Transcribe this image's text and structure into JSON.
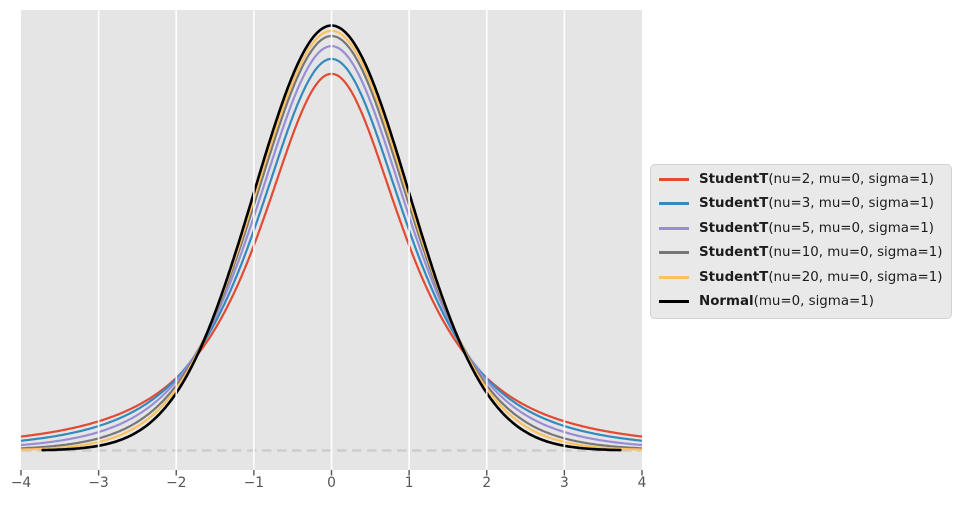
{
  "figure": {
    "background": "#ffffff"
  },
  "chart_data": {
    "type": "line",
    "title": "",
    "xlabel": "",
    "ylabel": "",
    "plot_background": "#e5e5e5",
    "grid": {
      "color": "#ffffff",
      "vertical_lines_at": [
        -3,
        -2,
        -1,
        0,
        1,
        2,
        3
      ],
      "horizontal": false,
      "above_data": true
    },
    "xlim": [
      -4,
      4
    ],
    "ylim": [
      -0.0183,
      0.4135
    ],
    "x_ticks": {
      "values": [
        -4,
        -3,
        -2,
        -1,
        0,
        1,
        2,
        3,
        4
      ],
      "labels": [
        "−4",
        "−3",
        "−2",
        "−1",
        "0",
        "1",
        "2",
        "3",
        "4"
      ],
      "color": "#555555"
    },
    "y_ticks": {
      "values": [],
      "labels": []
    },
    "baseline": {
      "y": 0,
      "style": "dashed",
      "color": "#cdcdcd",
      "x_start": -4,
      "x_end": 4
    },
    "samples_x": [
      -4,
      -3,
      -2,
      -1,
      0,
      1,
      2,
      3,
      4
    ],
    "series": [
      {
        "name": "StudentT",
        "params": "(nu=2, mu=0, sigma=1)",
        "distribution": "studentt",
        "nu": 2,
        "mu": 0,
        "sigma": 1,
        "color": "#e24a33",
        "pdf_at_0": 0.3536,
        "x_range": [
          -4.1,
          4.1
        ],
        "samples_y": [
          0.0131,
          0.0274,
          0.068,
          0.1925,
          0.3536,
          0.1925,
          0.068,
          0.0274,
          0.0131
        ]
      },
      {
        "name": "StudentT",
        "params": "(nu=3, mu=0, sigma=1)",
        "distribution": "studentt",
        "nu": 3,
        "mu": 0,
        "sigma": 1,
        "color": "#348abd",
        "pdf_at_0": 0.3676,
        "x_range": [
          -4.1,
          4.1
        ],
        "samples_y": [
          0.0092,
          0.023,
          0.0675,
          0.2067,
          0.3676,
          0.2067,
          0.0675,
          0.023,
          0.0092
        ]
      },
      {
        "name": "StudentT",
        "params": "(nu=5, mu=0, sigma=1)",
        "distribution": "studentt",
        "nu": 5,
        "mu": 0,
        "sigma": 1,
        "color": "#988ed5",
        "pdf_at_0": 0.3796,
        "x_range": [
          -4.1,
          4.1
        ],
        "samples_y": [
          0.0051,
          0.0173,
          0.0651,
          0.2197,
          0.3796,
          0.2197,
          0.0651,
          0.0173,
          0.0051
        ]
      },
      {
        "name": "StudentT",
        "params": "(nu=10, mu=0, sigma=1)",
        "distribution": "studentt",
        "nu": 10,
        "mu": 0,
        "sigma": 1,
        "color": "#777777",
        "pdf_at_0": 0.3891,
        "x_range": [
          -4.1,
          4.1
        ],
        "samples_y": [
          0.002,
          0.0114,
          0.0612,
          0.2304,
          0.3891,
          0.2304,
          0.0612,
          0.0114,
          0.002
        ]
      },
      {
        "name": "StudentT",
        "params": "(nu=20, mu=0, sigma=1)",
        "distribution": "studentt",
        "nu": 20,
        "mu": 0,
        "sigma": 1,
        "color": "#fbc15e",
        "pdf_at_0": 0.394,
        "x_range": [
          -4.1,
          4.1
        ],
        "samples_y": [
          0.0008,
          0.008,
          0.0581,
          0.236,
          0.394,
          0.236,
          0.0581,
          0.008,
          0.0008
        ]
      },
      {
        "name": "Normal",
        "params": "(mu=0, sigma=1)",
        "distribution": "normal",
        "mu": 0,
        "sigma": 1,
        "color": "#000000",
        "pdf_at_0": 0.3989,
        "x_range": [
          -3.72,
          3.72
        ],
        "samples_y": [
          0.0001,
          0.0044,
          0.054,
          0.242,
          0.3989,
          0.242,
          0.054,
          0.0044,
          0.0001
        ]
      }
    ],
    "legend": {
      "location": "outside center right",
      "background": "#e9e9e9",
      "border_color": "#d2d2d2"
    }
  }
}
